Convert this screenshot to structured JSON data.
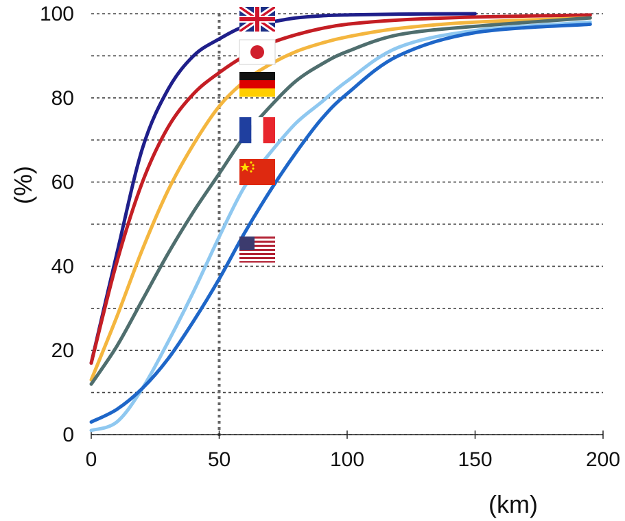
{
  "chart_data": {
    "type": "line",
    "title": "",
    "xlabel": "(km)",
    "ylabel": "(%)",
    "xlim": [
      0,
      200
    ],
    "ylim": [
      0,
      100
    ],
    "x_ticks": [
      "0",
      "50",
      "100",
      "150",
      "200"
    ],
    "y_ticks": [
      "0",
      "20",
      "40",
      "60",
      "80",
      "100"
    ],
    "grid": "horizontal dashed lines every 10%",
    "reference_line_x": 50,
    "series": [
      {
        "country": "United Kingdom",
        "flag_icon": "uk-flag-icon",
        "color": "#1f1f8a",
        "x": [
          0,
          10,
          20,
          30,
          40,
          50,
          60,
          70,
          80,
          90,
          100,
          120,
          150
        ],
        "y": [
          17,
          43,
          68,
          82,
          90,
          94,
          97,
          98,
          99,
          99.5,
          99.7,
          99.9,
          100
        ]
      },
      {
        "country": "Japan",
        "flag_icon": "japan-flag-icon",
        "color": "#c41e24",
        "x": [
          0,
          10,
          20,
          30,
          40,
          50,
          60,
          70,
          80,
          90,
          100,
          120,
          150,
          195
        ],
        "y": [
          17,
          41,
          60,
          73,
          81,
          86,
          90,
          93,
          95,
          96.5,
          97.5,
          98.5,
          99.2,
          99.7
        ]
      },
      {
        "country": "Germany",
        "flag_icon": "germany-flag-icon",
        "color": "#f4b63f",
        "x": [
          0,
          10,
          20,
          30,
          40,
          50,
          60,
          70,
          80,
          90,
          100,
          120,
          150,
          195
        ],
        "y": [
          13,
          28,
          44,
          58,
          69,
          78,
          84,
          88,
          91,
          93,
          94.5,
          96.5,
          98,
          99
        ]
      },
      {
        "country": "France",
        "flag_icon": "france-flag-icon",
        "color": "#4f6e6e",
        "x": [
          0,
          10,
          20,
          30,
          40,
          50,
          60,
          70,
          80,
          90,
          100,
          120,
          150,
          195
        ],
        "y": [
          12,
          21,
          32,
          43,
          53,
          62,
          71,
          78,
          84,
          88,
          91,
          95,
          97,
          99
        ]
      },
      {
        "country": "China",
        "flag_icon": "china-flag-icon",
        "color": "#8fc8f0",
        "x": [
          0,
          10,
          20,
          30,
          40,
          50,
          60,
          70,
          80,
          90,
          100,
          120,
          150,
          195
        ],
        "y": [
          1,
          3,
          11,
          22,
          34,
          47,
          59,
          67,
          74,
          79,
          84,
          92,
          96,
          98
        ]
      },
      {
        "country": "United States",
        "flag_icon": "usa-flag-icon",
        "color": "#1e66c8",
        "x": [
          0,
          10,
          20,
          30,
          40,
          50,
          60,
          70,
          80,
          90,
          100,
          120,
          150,
          195
        ],
        "y": [
          3,
          6,
          11,
          18,
          27,
          37,
          48,
          58,
          67,
          75,
          81,
          90,
          95.5,
          97.5
        ]
      }
    ]
  }
}
